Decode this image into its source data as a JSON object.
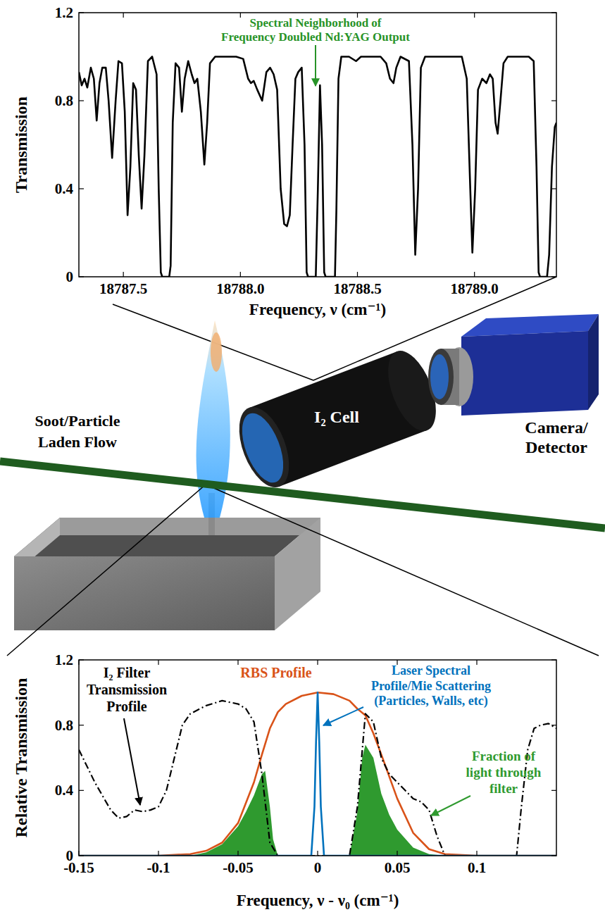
{
  "chart_data": [
    {
      "type": "line",
      "x_label": "Frequency, ν (cm⁻¹)",
      "y_label": "Transmission",
      "xlim": [
        18787.31,
        18789.35
      ],
      "ylim": [
        0,
        1.2
      ],
      "xticks": [
        18787.5,
        {
          "value": 18788,
          "label": "18788.0"
        },
        18788.5,
        {
          "value": 18789,
          "label": "18789.0"
        }
      ],
      "yticks": [
        0,
        0.4,
        0.8,
        1.2
      ],
      "grid": false,
      "annotation": {
        "lines": [
          "Spectral Neighborhood of",
          "Frequency Doubled Nd:YAG Output"
        ],
        "color": "#279327"
      },
      "series": [
        {
          "color": "#000000",
          "line_style": "solid",
          "x": [
            18787.31,
            18787.322,
            18787.334,
            18787.346,
            18787.361,
            18787.374,
            18787.386,
            18787.398,
            18787.41,
            18787.425,
            18787.437,
            18787.452,
            18787.467,
            18787.479,
            18787.494,
            18787.506,
            18787.518,
            18787.53,
            18787.542,
            18787.554,
            18787.566,
            18787.578,
            18787.59,
            18787.605,
            18787.623,
            18787.642,
            18787.651,
            18787.66,
            18787.666,
            18787.696,
            18787.702,
            18787.711,
            18787.723,
            18787.738,
            18787.75,
            18787.762,
            18787.777,
            18787.792,
            18787.804,
            18787.816,
            18787.831,
            18787.846,
            18787.858,
            18787.87,
            18787.892,
            18787.937,
            18787.982,
            18788.012,
            18788.033,
            18788.045,
            18788.057,
            18788.072,
            18788.093,
            18788.111,
            18788.127,
            18788.142,
            18788.157,
            18788.172,
            18788.187,
            18788.199,
            18788.211,
            18788.223,
            18788.235,
            18788.247,
            18788.262,
            18788.274,
            18788.283,
            18788.289,
            18788.322,
            18788.331,
            18788.34,
            18788.349,
            18788.358,
            18788.364,
            18788.404,
            18788.41,
            18788.419,
            18788.431,
            18788.464,
            18788.494,
            18788.515,
            18788.554,
            18788.599,
            18788.623,
            18788.639,
            18788.654,
            18788.666,
            18788.684,
            18788.72,
            18788.735,
            18788.747,
            18788.759,
            18788.771,
            18788.789,
            18788.84,
            18788.901,
            18788.946,
            18788.967,
            18788.982,
            18788.991,
            18789.003,
            18789.015,
            18789.033,
            18789.051,
            18789.066,
            18789.078,
            18789.09,
            18789.099,
            18789.111,
            18789.124,
            18789.142,
            18789.187,
            18789.232,
            18789.253,
            18789.265,
            18789.274,
            18789.28,
            18789.31,
            18789.319,
            18789.331,
            18789.343,
            18789.35
          ],
          "values": [
            0.93,
            0.87,
            0.9,
            0.86,
            0.95,
            0.9,
            0.71,
            0.88,
            0.95,
            0.95,
            0.8,
            0.54,
            0.8,
            0.98,
            0.97,
            0.75,
            0.28,
            0.5,
            0.88,
            0.85,
            0.55,
            0.31,
            0.55,
            0.98,
            1.0,
            0.92,
            0.4,
            0.02,
            0,
            0,
            0.05,
            0.7,
            0.97,
            0.95,
            0.75,
            0.9,
            0.98,
            0.92,
            0.88,
            0.9,
            0.75,
            0.51,
            0.7,
            0.97,
            1.0,
            1.0,
            1.0,
            0.99,
            0.9,
            0.88,
            0.89,
            0.85,
            0.8,
            0.93,
            0.95,
            0.92,
            0.85,
            0.4,
            0.24,
            0.23,
            0.28,
            0.6,
            0.9,
            0.93,
            0.95,
            0.6,
            0.02,
            0,
            0,
            0.4,
            0.87,
            0.6,
            0.02,
            0,
            0,
            0.3,
            0.9,
            1.0,
            1.0,
            0.98,
            1.0,
            1.0,
            1.0,
            0.97,
            0.9,
            0.88,
            0.95,
            1.0,
            0.98,
            0.6,
            0.1,
            0.4,
            0.95,
            1.0,
            1.0,
            1.0,
            1.0,
            0.9,
            0.4,
            0.11,
            0.4,
            0.85,
            0.9,
            0.88,
            0.92,
            0.9,
            0.7,
            0.65,
            0.8,
            0.97,
            1.0,
            1.0,
            1.0,
            0.98,
            0.5,
            0.02,
            0,
            0,
            0.1,
            0.5,
            0.68,
            0.7
          ]
        }
      ]
    },
    {
      "type": "line",
      "x_label": "Frequency, ν - ν₀ (cm⁻¹)",
      "y_label": "Relative Transmission",
      "xlim": [
        -0.15,
        0.15
      ],
      "ylim": [
        0,
        1.2
      ],
      "xticks": [
        -0.15,
        -0.1,
        -0.05,
        0,
        0.05,
        0.1
      ],
      "yticks": [
        0,
        0.4,
        0.8,
        1.2
      ],
      "grid": false,
      "series": [
        {
          "name": "Fraction of light through filter",
          "type": "area",
          "color": "#2f9a2f",
          "x": [
            -0.08,
            -0.07,
            -0.06,
            -0.05,
            -0.045,
            -0.04,
            -0.035,
            -0.033,
            -0.03,
            -0.028,
            -0.025,
            0.02,
            0.025,
            0.028,
            0.03,
            0.035,
            0.04,
            0.045,
            0.05,
            0.06,
            0.07,
            0.08
          ],
          "values": [
            0,
            0.02,
            0.07,
            0.18,
            0.27,
            0.37,
            0.5,
            0.52,
            0.3,
            0.1,
            0,
            0,
            0.27,
            0.6,
            0.68,
            0.6,
            0.38,
            0.25,
            0.16,
            0.05,
            0.01,
            0
          ]
        },
        {
          "name": "RBS Profile",
          "type": "line",
          "color": "#d95319",
          "line_style": "solid",
          "x": [
            -0.15,
            -0.1,
            -0.08,
            -0.07,
            -0.06,
            -0.05,
            -0.04,
            -0.035,
            -0.03,
            -0.025,
            -0.02,
            -0.01,
            0,
            0.01,
            0.02,
            0.025,
            0.03,
            0.035,
            0.04,
            0.05,
            0.06,
            0.07,
            0.08,
            0.1,
            0.15
          ],
          "values": [
            0,
            0,
            0.01,
            0.03,
            0.08,
            0.2,
            0.45,
            0.62,
            0.78,
            0.88,
            0.93,
            0.98,
            1.0,
            0.99,
            0.95,
            0.9,
            0.86,
            0.75,
            0.62,
            0.35,
            0.14,
            0.04,
            0.01,
            0,
            0
          ]
        },
        {
          "name": "I₂ Filter Transmission Profile",
          "type": "line",
          "color": "#000000",
          "line_style": "dashdot",
          "x": [
            -0.15,
            -0.14,
            -0.13,
            -0.125,
            -0.12,
            -0.115,
            -0.11,
            -0.105,
            -0.1,
            -0.095,
            -0.09,
            -0.085,
            -0.08,
            -0.07,
            -0.06,
            -0.05,
            -0.045,
            -0.04,
            -0.035,
            -0.03,
            -0.025,
            0.02,
            0.025,
            0.03,
            0.035,
            0.04,
            0.045,
            0.05,
            0.055,
            0.06,
            0.065,
            0.07,
            0.075,
            0.08,
            0.125,
            0.128,
            0.132,
            0.136,
            0.14,
            0.145,
            0.15
          ],
          "values": [
            0.65,
            0.45,
            0.28,
            0.23,
            0.24,
            0.28,
            0.27,
            0.28,
            0.3,
            0.4,
            0.6,
            0.8,
            0.87,
            0.92,
            0.95,
            0.93,
            0.9,
            0.82,
            0.5,
            0.08,
            0,
            0,
            0.3,
            0.87,
            0.82,
            0.6,
            0.5,
            0.45,
            0.4,
            0.35,
            0.33,
            0.28,
            0.12,
            0,
            0,
            0.3,
            0.65,
            0.78,
            0.8,
            0.81,
            0.78
          ]
        },
        {
          "name": "Laser Spectral Profile/Mie Scattering (Particles, Walls, etc)",
          "type": "line",
          "color": "#0072bd",
          "line_style": "solid",
          "x": [
            -0.15,
            -0.004,
            -0.002,
            -0.001,
            0,
            0.001,
            0.002,
            0.004,
            0.15
          ],
          "values": [
            0,
            0,
            0.3,
            0.7,
            1.0,
            0.7,
            0.3,
            0,
            0
          ]
        }
      ]
    }
  ],
  "diagram": {
    "flow_label": [
      "Soot/Particle",
      "Laden Flow"
    ],
    "cell_label": "I₂ Cell",
    "detector_label": [
      "Camera/",
      "Detector"
    ]
  }
}
